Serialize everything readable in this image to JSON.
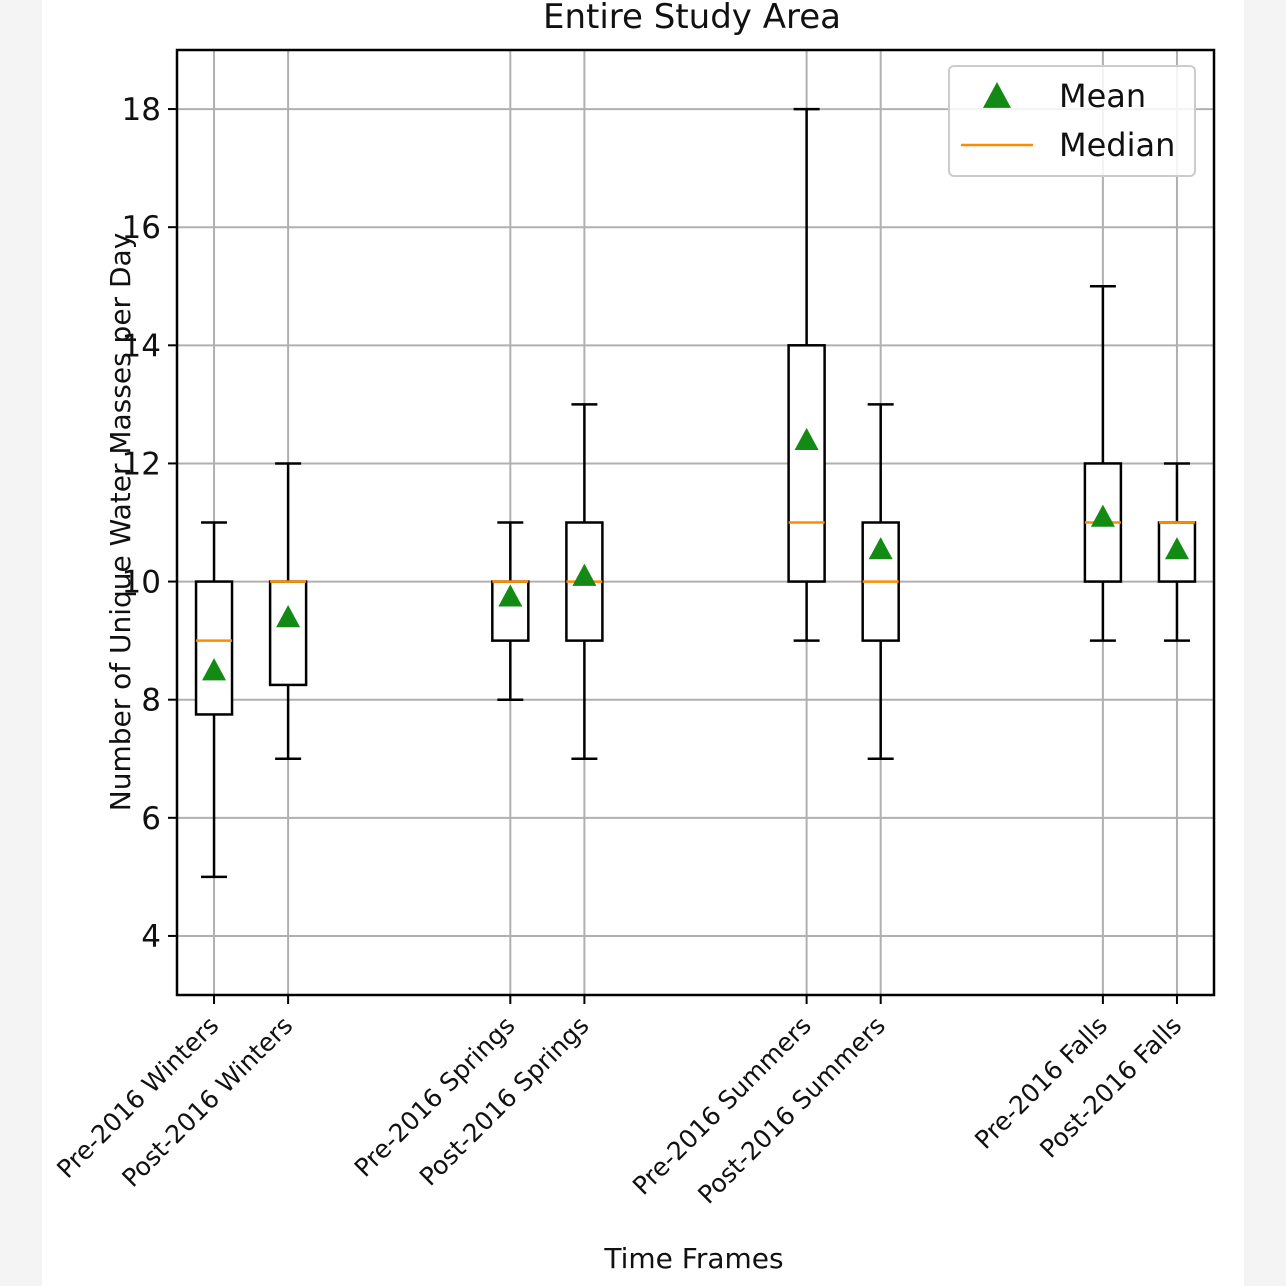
{
  "chart_data": {
    "type": "boxplot",
    "title": "Entire Study Area",
    "xlabel": "Time Frames",
    "ylabel": "Number of Unique Water Masses per Day",
    "ylim": [
      3,
      19
    ],
    "yticks": [
      4,
      6,
      8,
      10,
      12,
      14,
      16,
      18
    ],
    "grid": true,
    "legend": {
      "position": "top-right",
      "entries": [
        {
          "label": "Mean",
          "marker": "triangle",
          "color": "#138a13"
        },
        {
          "label": "Median",
          "marker": "line",
          "color": "#ff8c00"
        }
      ]
    },
    "colors": {
      "box": "#000000",
      "median": "#ff8c00",
      "mean": "#138a13",
      "grid": "#b0b0b0"
    },
    "boxes": [
      {
        "label": "Pre-2016 Winters",
        "x": 1,
        "whisker_low": 5,
        "q1": 7.75,
        "median": 9,
        "q3": 10,
        "whisker_high": 11,
        "mean": 8.5
      },
      {
        "label": "Post-2016 Winters",
        "x": 2,
        "whisker_low": 7,
        "q1": 8.25,
        "median": 10,
        "q3": 10,
        "whisker_high": 12,
        "mean": 9.4
      },
      {
        "label": "Pre-2016 Springs",
        "x": 5,
        "whisker_low": 8,
        "q1": 9,
        "median": 10,
        "q3": 10,
        "whisker_high": 11,
        "mean": 9.75
      },
      {
        "label": "Post-2016 Springs",
        "x": 6,
        "whisker_low": 7,
        "q1": 9,
        "median": 10,
        "q3": 11,
        "whisker_high": 13,
        "mean": 10.1
      },
      {
        "label": "Pre-2016 Summers",
        "x": 9,
        "whisker_low": 9,
        "q1": 10,
        "median": 11,
        "q3": 14,
        "whisker_high": 18,
        "mean": 12.4
      },
      {
        "label": "Post-2016 Summers",
        "x": 10,
        "whisker_low": 7,
        "q1": 9,
        "median": 10,
        "q3": 11,
        "whisker_high": 13,
        "mean": 10.55
      },
      {
        "label": "Pre-2016 Falls",
        "x": 13,
        "whisker_low": 9,
        "q1": 10,
        "median": 11,
        "q3": 12,
        "whisker_high": 15,
        "mean": 11.1
      },
      {
        "label": "Post-2016 Falls",
        "x": 14,
        "whisker_low": 9,
        "q1": 10,
        "median": 11,
        "q3": 11,
        "whisker_high": 12,
        "mean": 10.55
      }
    ]
  }
}
